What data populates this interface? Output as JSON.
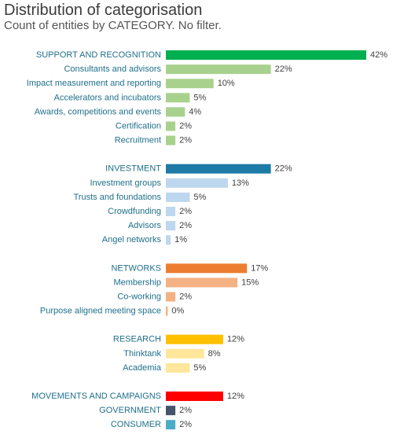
{
  "header": {
    "title": "Distribution of categorisation",
    "subtitle": "Count of entities by CATEGORY. No filter."
  },
  "chart_data": {
    "type": "bar",
    "orientation": "horizontal",
    "title": "Distribution of categorisation",
    "subtitle": "Count of entities by CATEGORY. No filter.",
    "value_format": "percent",
    "xlim": [
      0,
      42
    ],
    "grid": false,
    "legend": "none",
    "groups": [
      {
        "items": [
          {
            "label": "SUPPORT AND RECOGNITION",
            "value": 42,
            "display": "42%",
            "color": "#00b050",
            "is_group_header": true
          },
          {
            "label": "Consultants and advisors",
            "value": 22,
            "display": "22%",
            "color": "#a9d18e",
            "is_group_header": false
          },
          {
            "label": "Impact measurement and reporting",
            "value": 10,
            "display": "10%",
            "color": "#a9d18e",
            "is_group_header": false
          },
          {
            "label": "Accelerators and incubators",
            "value": 5,
            "display": "5%",
            "color": "#a9d18e",
            "is_group_header": false
          },
          {
            "label": "Awards, competitions and events",
            "value": 4,
            "display": "4%",
            "color": "#a9d18e",
            "is_group_header": false
          },
          {
            "label": "Certification",
            "value": 2,
            "display": "2%",
            "color": "#a9d18e",
            "is_group_header": false
          },
          {
            "label": "Recruitment",
            "value": 2,
            "display": "2%",
            "color": "#a9d18e",
            "is_group_header": false
          }
        ]
      },
      {
        "items": [
          {
            "label": "INVESTMENT",
            "value": 22,
            "display": "22%",
            "color": "#1e7aa6",
            "is_group_header": true
          },
          {
            "label": "Investment groups",
            "value": 13,
            "display": "13%",
            "color": "#bdd7ee",
            "is_group_header": false
          },
          {
            "label": "Trusts and foundations",
            "value": 5,
            "display": "5%",
            "color": "#bdd7ee",
            "is_group_header": false
          },
          {
            "label": "Crowdfunding",
            "value": 2,
            "display": "2%",
            "color": "#bdd7ee",
            "is_group_header": false
          },
          {
            "label": "Advisors",
            "value": 2,
            "display": "2%",
            "color": "#bdd7ee",
            "is_group_header": false
          },
          {
            "label": "Angel networks",
            "value": 1,
            "display": "1%",
            "color": "#bdd7ee",
            "is_group_header": false
          }
        ]
      },
      {
        "items": [
          {
            "label": "NETWORKS",
            "value": 17,
            "display": "17%",
            "color": "#ed7d31",
            "is_group_header": true
          },
          {
            "label": "Membership",
            "value": 15,
            "display": "15%",
            "color": "#f4b183",
            "is_group_header": false
          },
          {
            "label": "Co-working",
            "value": 2,
            "display": "2%",
            "color": "#f4b183",
            "is_group_header": false
          },
          {
            "label": "Purpose aligned meeting space",
            "value": 0.4,
            "display": "0%",
            "color": "#f4b183",
            "is_group_header": false
          }
        ]
      },
      {
        "items": [
          {
            "label": "RESEARCH",
            "value": 12,
            "display": "12%",
            "color": "#ffc000",
            "is_group_header": true
          },
          {
            "label": "Thinktank",
            "value": 8,
            "display": "8%",
            "color": "#ffe699",
            "is_group_header": false
          },
          {
            "label": "Academia",
            "value": 5,
            "display": "5%",
            "color": "#ffe699",
            "is_group_header": false
          }
        ]
      },
      {
        "items": [
          {
            "label": "MOVEMENTS AND CAMPAIGNS",
            "value": 12,
            "display": "12%",
            "color": "#ff0000",
            "is_group_header": true
          },
          {
            "label": "GOVERNMENT",
            "value": 2,
            "display": "2%",
            "color": "#44546a",
            "is_group_header": true
          },
          {
            "label": "CONSUMER",
            "value": 2,
            "display": "2%",
            "color": "#4bacc6",
            "is_group_header": true
          }
        ]
      }
    ]
  },
  "colors": {
    "label_text": "#1f6f8b",
    "value_text": "#404040"
  }
}
